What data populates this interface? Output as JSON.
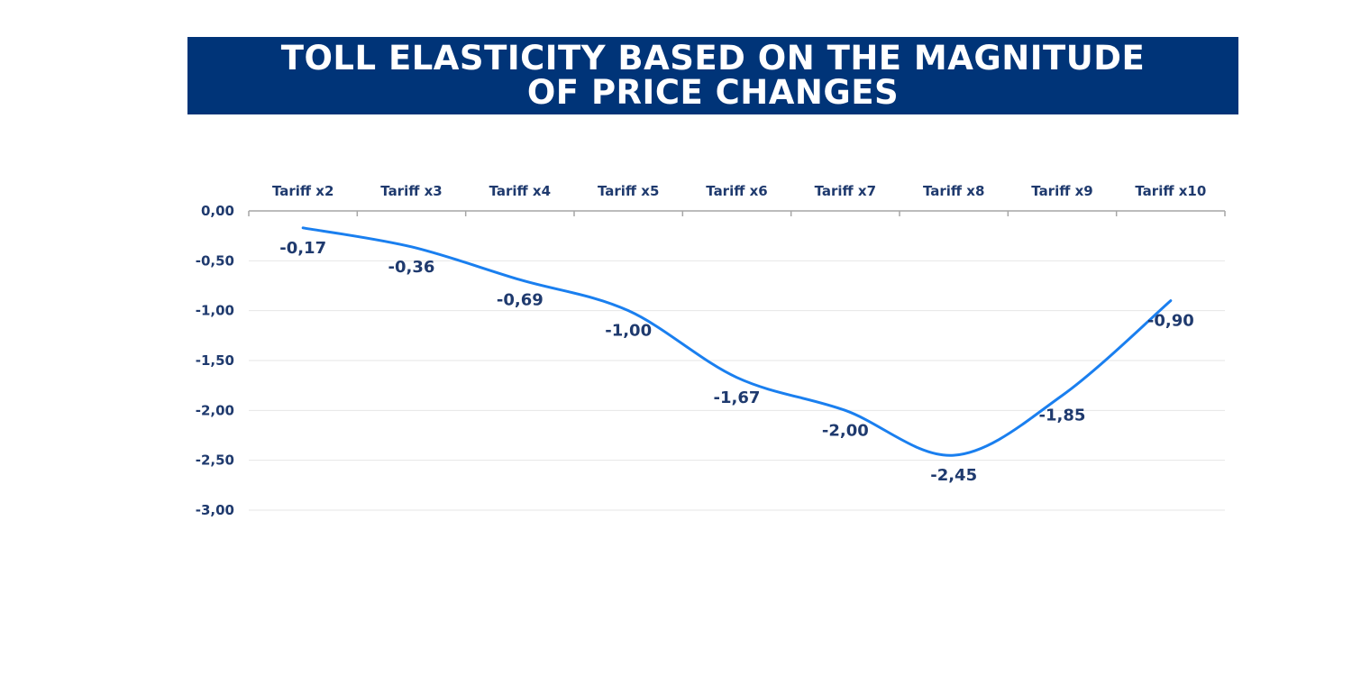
{
  "chart_data": {
    "type": "line",
    "title": "TOLL ELASTICITY BASED ON THE MAGNITUDE\nOF PRICE CHANGES",
    "categories": [
      "Tariff x2",
      "Tariff x3",
      "Tariff x4",
      "Tariff x5",
      "Tariff x6",
      "Tariff x7",
      "Tariff x8",
      "Tariff x9",
      "Tariff x10"
    ],
    "series": [
      {
        "values": [
          -0.17,
          -0.36,
          -0.69,
          -1.0,
          -1.67,
          -2.0,
          -2.45,
          -1.85,
          -0.9
        ]
      }
    ],
    "data_labels": [
      "-0,17",
      "-0,36",
      "-0,69",
      "-1,00",
      "-1,67",
      "-2,00",
      "-2,45",
      "-1,85",
      "-0,90"
    ],
    "y_ticks": [
      0,
      -0.5,
      -1,
      -1.5,
      -2,
      -2.5,
      -3
    ],
    "y_tick_labels": [
      "0,00",
      "-0,50",
      "-1,00",
      "-1,50",
      "-2,00",
      "-2,50",
      "-3,00"
    ],
    "ylim": [
      -3,
      0
    ],
    "x_axis_position": "top",
    "smooth": true,
    "grid": "horizontal",
    "legend": "none",
    "colors": {
      "title_bg": "#003478",
      "title_text": "#ffffff",
      "line": "#1a7fef",
      "labels": "#1f3a6e",
      "grid": "#e6e6e6"
    }
  }
}
